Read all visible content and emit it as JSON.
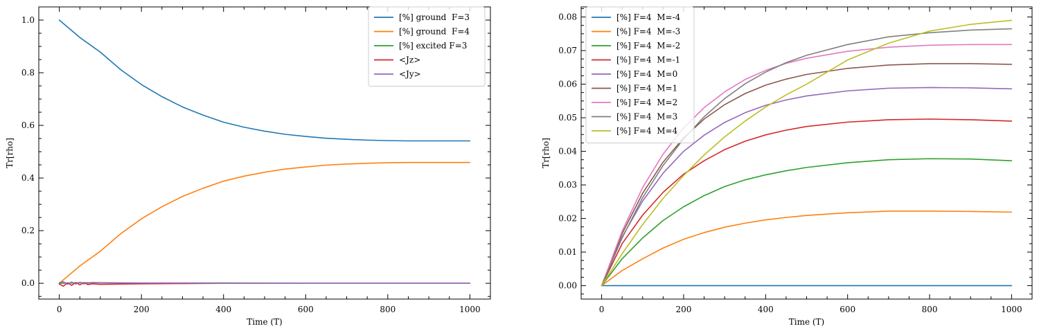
{
  "chart_data": [
    {
      "type": "line",
      "xlabel": "Time (T)",
      "ylabel": "Tr[rho]",
      "xlim": [
        -50,
        1050
      ],
      "ylim": [
        -0.06,
        1.05
      ],
      "xticks": [
        0,
        200,
        400,
        600,
        800,
        1000
      ],
      "xtick_labels": [
        "0",
        "200",
        "400",
        "600",
        "800",
        "1000"
      ],
      "yticks": [
        0.0,
        0.2,
        0.4,
        0.6,
        0.8,
        1.0
      ],
      "ytick_labels": [
        "0.0",
        "0.2",
        "0.4",
        "0.6",
        "0.8",
        "1.0"
      ],
      "legend_position": "top-right",
      "grid": false,
      "series": [
        {
          "name": "[%] ground  F=3",
          "color": "#1f77b4",
          "x": [
            0,
            50,
            100,
            150,
            200,
            250,
            300,
            350,
            400,
            450,
            500,
            550,
            600,
            650,
            700,
            750,
            800,
            850,
            900,
            950,
            1000
          ],
          "y": [
            1.0,
            0.934,
            0.878,
            0.811,
            0.755,
            0.709,
            0.67,
            0.639,
            0.612,
            0.593,
            0.578,
            0.566,
            0.558,
            0.551,
            0.547,
            0.544,
            0.542,
            0.541,
            0.541,
            0.541,
            0.541
          ]
        },
        {
          "name": "[%] ground  F=4",
          "color": "#ff7f0e",
          "x": [
            0,
            50,
            100,
            150,
            200,
            250,
            300,
            350,
            400,
            450,
            500,
            550,
            600,
            650,
            700,
            750,
            800,
            850,
            900,
            950,
            1000
          ],
          "y": [
            0.0,
            0.066,
            0.122,
            0.189,
            0.245,
            0.291,
            0.33,
            0.361,
            0.388,
            0.407,
            0.422,
            0.434,
            0.442,
            0.449,
            0.453,
            0.456,
            0.458,
            0.459,
            0.459,
            0.459,
            0.459
          ]
        },
        {
          "name": "[%] excited F=3",
          "color": "#2ca02c",
          "x": [
            0,
            50,
            100,
            200,
            400,
            600,
            800,
            1000
          ],
          "y": [
            0.0,
            0.002,
            0.002,
            0.001,
            0.001,
            0.0,
            0.0,
            0.0
          ]
        },
        {
          "name": "<Jz>",
          "color": "#d62728",
          "x": [
            0,
            10,
            20,
            30,
            40,
            50,
            60,
            70,
            80,
            100,
            150,
            200,
            300,
            400,
            600,
            800,
            1000
          ],
          "y": [
            -0.003,
            -0.011,
            0.002,
            -0.008,
            0.003,
            -0.006,
            0.002,
            -0.005,
            -0.002,
            -0.004,
            -0.003,
            -0.002,
            -0.001,
            0.0,
            0.0,
            0.0,
            0.0
          ]
        },
        {
          "name": "<Jy>",
          "color": "#9467bd",
          "x": [
            0,
            10,
            20,
            30,
            40,
            50,
            60,
            80,
            100,
            150,
            200,
            300,
            400,
            600,
            800,
            1000
          ],
          "y": [
            0.002,
            0.006,
            -0.004,
            0.005,
            -0.003,
            0.004,
            -0.002,
            0.003,
            0.002,
            0.001,
            0.001,
            0.001,
            0.0,
            0.0,
            0.0,
            0.0
          ]
        }
      ]
    },
    {
      "type": "line",
      "xlabel": "Time (T)",
      "ylabel": "Tr[rho]",
      "xlim": [
        -50,
        1050
      ],
      "ylim": [
        -0.004,
        0.083
      ],
      "xticks": [
        0,
        200,
        400,
        600,
        800,
        1000
      ],
      "xtick_labels": [
        "0",
        "200",
        "400",
        "600",
        "800",
        "1000"
      ],
      "yticks": [
        0.0,
        0.01,
        0.02,
        0.03,
        0.04,
        0.05,
        0.06,
        0.07,
        0.08
      ],
      "ytick_labels": [
        "0.00",
        "0.01",
        "0.02",
        "0.03",
        "0.04",
        "0.05",
        "0.06",
        "0.07",
        "0.08"
      ],
      "legend_position": "top-left",
      "grid": false,
      "series": [
        {
          "name": "[%] F=4  M=-4",
          "color": "#1f77b4",
          "x": [
            0,
            100,
            200,
            300,
            400,
            500,
            600,
            700,
            800,
            900,
            1000
          ],
          "y": [
            0.0,
            0.0,
            0.0,
            0.0,
            0.0,
            0.0,
            0.0,
            0.0,
            0.0,
            0.0,
            0.0
          ]
        },
        {
          "name": "[%] F=4  M=-3",
          "color": "#ff7f0e",
          "x": [
            0,
            50,
            100,
            150,
            200,
            250,
            300,
            350,
            400,
            450,
            500,
            600,
            700,
            800,
            900,
            1000
          ],
          "y": [
            0.0,
            0.0045,
            0.008,
            0.0112,
            0.0138,
            0.0158,
            0.0174,
            0.0186,
            0.0196,
            0.0203,
            0.0209,
            0.0217,
            0.0222,
            0.0222,
            0.0221,
            0.0219
          ]
        },
        {
          "name": "[%] F=4  M=-2",
          "color": "#2ca02c",
          "x": [
            0,
            50,
            100,
            150,
            200,
            250,
            300,
            350,
            400,
            450,
            500,
            600,
            700,
            800,
            900,
            1000
          ],
          "y": [
            0.0,
            0.008,
            0.0142,
            0.0194,
            0.0235,
            0.0268,
            0.0295,
            0.0315,
            0.033,
            0.0342,
            0.0352,
            0.0366,
            0.0375,
            0.0378,
            0.0377,
            0.0372
          ]
        },
        {
          "name": "[%] F=4  M=-1",
          "color": "#d62728",
          "x": [
            0,
            50,
            100,
            150,
            200,
            250,
            300,
            350,
            400,
            450,
            500,
            600,
            700,
            800,
            900,
            1000
          ],
          "y": [
            0.0,
            0.0125,
            0.021,
            0.0278,
            0.0332,
            0.0372,
            0.0405,
            0.043,
            0.0449,
            0.0463,
            0.0474,
            0.0487,
            0.0494,
            0.0496,
            0.0494,
            0.049
          ]
        },
        {
          "name": "[%] F=4  M=0",
          "color": "#9467bd",
          "x": [
            0,
            50,
            100,
            150,
            200,
            250,
            300,
            350,
            400,
            450,
            500,
            600,
            700,
            800,
            900,
            1000
          ],
          "y": [
            0.0,
            0.0145,
            0.0252,
            0.0335,
            0.04,
            0.0448,
            0.0486,
            0.0515,
            0.0537,
            0.0553,
            0.0565,
            0.058,
            0.0588,
            0.059,
            0.0589,
            0.0586
          ]
        },
        {
          "name": "[%] F=4  M=1",
          "color": "#8c564b",
          "x": [
            0,
            50,
            100,
            150,
            200,
            250,
            300,
            350,
            400,
            450,
            500,
            600,
            700,
            800,
            900,
            1000
          ],
          "y": [
            0.0,
            0.0155,
            0.0275,
            0.0368,
            0.044,
            0.0496,
            0.0539,
            0.0572,
            0.0597,
            0.0615,
            0.0629,
            0.0647,
            0.0657,
            0.0661,
            0.0661,
            0.0659
          ]
        },
        {
          "name": "[%] F=4  M=2",
          "color": "#e377c2",
          "x": [
            0,
            50,
            100,
            150,
            200,
            250,
            300,
            350,
            400,
            450,
            500,
            600,
            700,
            800,
            900,
            1000
          ],
          "y": [
            0.0,
            0.0162,
            0.0292,
            0.0392,
            0.047,
            0.053,
            0.0577,
            0.0614,
            0.0641,
            0.0662,
            0.0677,
            0.0698,
            0.071,
            0.0716,
            0.0718,
            0.0718
          ]
        },
        {
          "name": "[%] F=4  M=3",
          "color": "#7f7f7f",
          "x": [
            0,
            50,
            100,
            150,
            200,
            250,
            300,
            350,
            400,
            450,
            500,
            600,
            700,
            800,
            900,
            1000
          ],
          "y": [
            0.0,
            0.0142,
            0.0262,
            0.0358,
            0.0437,
            0.0503,
            0.0557,
            0.0601,
            0.0636,
            0.0664,
            0.0686,
            0.0718,
            0.0741,
            0.0753,
            0.0761,
            0.0765
          ]
        },
        {
          "name": "[%] F=4  M=4",
          "color": "#bcbd22",
          "x": [
            0,
            50,
            100,
            150,
            200,
            250,
            300,
            350,
            400,
            450,
            500,
            600,
            700,
            800,
            900,
            1000
          ],
          "y": [
            0.0,
            0.0095,
            0.0182,
            0.026,
            0.0328,
            0.0389,
            0.0443,
            0.049,
            0.0532,
            0.0568,
            0.06,
            0.0672,
            0.0722,
            0.0758,
            0.0778,
            0.079
          ]
        }
      ]
    }
  ]
}
